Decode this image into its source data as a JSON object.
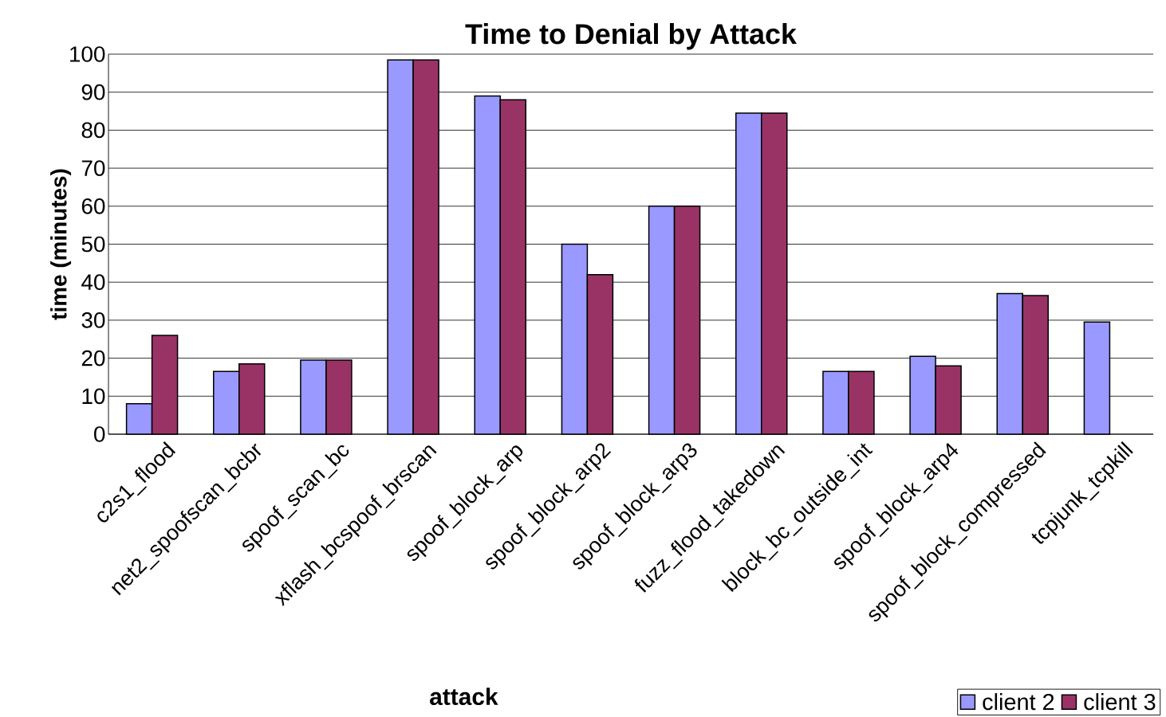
{
  "chart_data": {
    "type": "bar",
    "title": "Time to Denial by Attack",
    "xlabel": "attack",
    "ylabel": "time (minutes)",
    "categories": [
      "c2s1_flood",
      "net2_spoofscan_bcbr",
      "spoof_scan_bc",
      "xflash_bcspoof_brscan",
      "spoof_block_arp",
      "spoof_block_arp2",
      "spoof_block_arp3",
      "fuzz_flood_takedown",
      "block_bc_outside_int",
      "spoof_block_arp4",
      "spoof_block_compressed",
      "tcpjunk_tcpkill"
    ],
    "series": [
      {
        "name": "client 2",
        "color": "#9999ff",
        "values": [
          8,
          16.5,
          19.5,
          98.5,
          89,
          50,
          60,
          84.5,
          16.5,
          20.5,
          37,
          29.5
        ]
      },
      {
        "name": "client 3",
        "color": "#993366",
        "values": [
          26,
          18.5,
          19.5,
          98.5,
          88,
          42,
          60,
          84.5,
          16.5,
          18,
          36.5,
          null
        ]
      }
    ],
    "ylim": [
      0,
      100
    ],
    "yticks": [
      0,
      10,
      20,
      30,
      40,
      50,
      60,
      70,
      80,
      90,
      100
    ],
    "grid": "y",
    "legend": "bottom right"
  }
}
